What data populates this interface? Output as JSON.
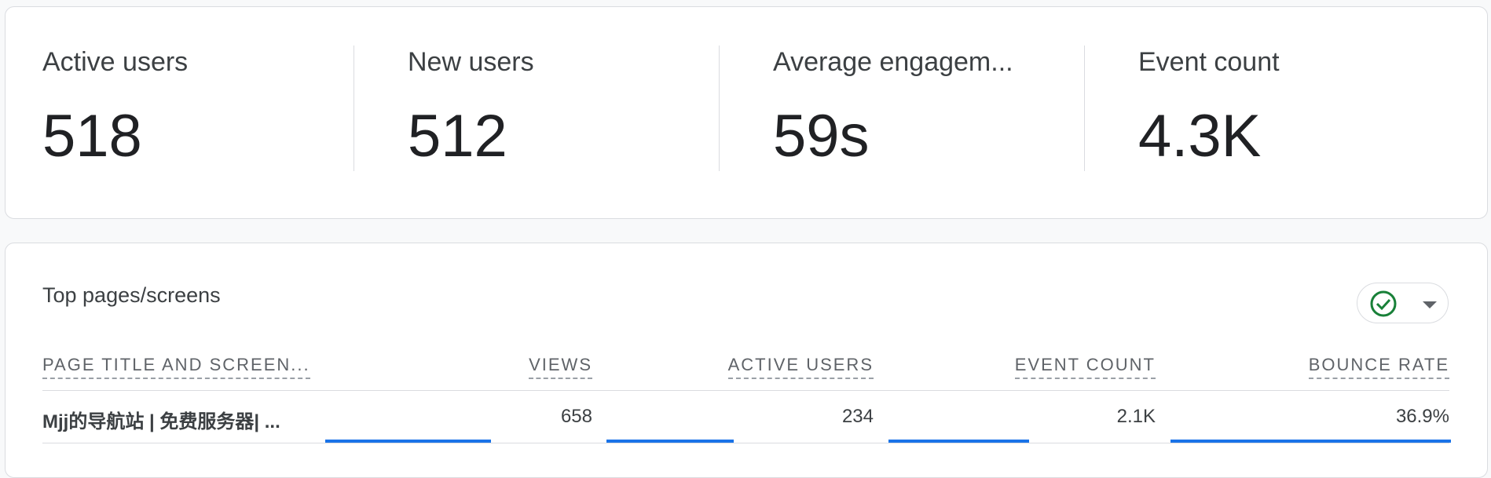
{
  "metrics": [
    {
      "label": "Active users",
      "value": "518"
    },
    {
      "label": "New users",
      "value": "512"
    },
    {
      "label": "Average engagem...",
      "value": "59s"
    },
    {
      "label": "Event count",
      "value": "4.3K"
    }
  ],
  "table": {
    "title": "Top pages/screens",
    "headers": [
      "PAGE TITLE AND SCREEN...",
      "VIEWS",
      "ACTIVE USERS",
      "EVENT COUNT",
      "BOUNCE RATE"
    ],
    "rows": [
      [
        "Mjj的导航站 | 免费服务器| ...",
        "658",
        "234",
        "2.1K",
        "36.9%"
      ]
    ]
  }
}
